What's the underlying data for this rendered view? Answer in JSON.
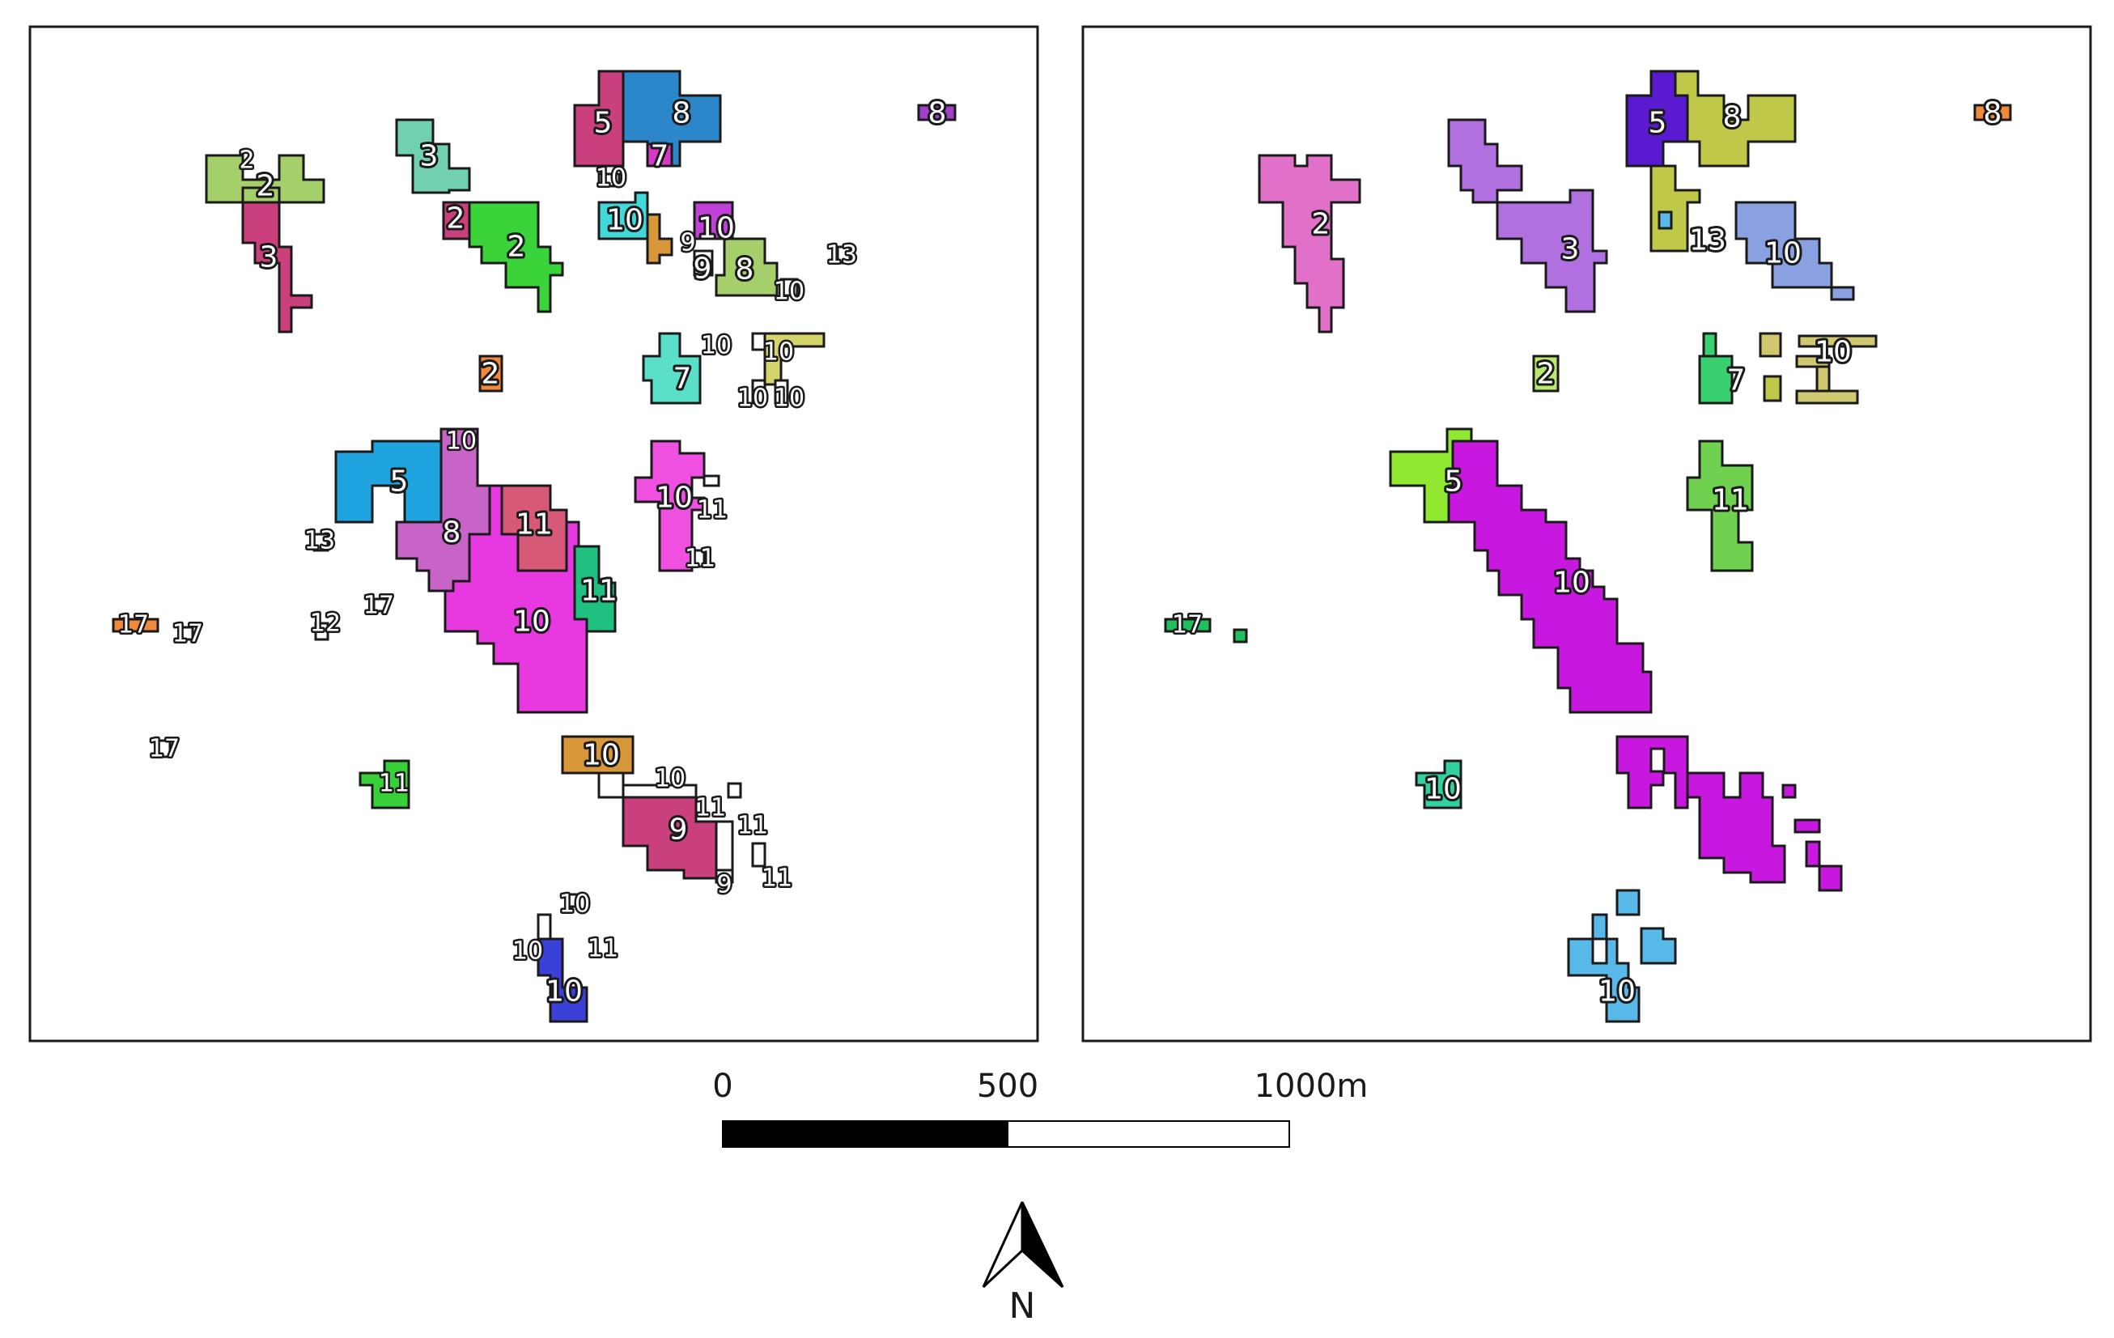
{
  "maps": [
    {
      "name": "left",
      "patches": [
        {
          "label": "5",
          "color": "#c9407c"
        },
        {
          "label": "8",
          "color": "#2b87c9"
        },
        {
          "label": "7",
          "color": "#d838c8"
        },
        {
          "label": "8",
          "color": "#a040c8"
        },
        {
          "label": "2",
          "color": "#a4cf6a"
        },
        {
          "label": "2",
          "color": "#a4cf6a"
        },
        {
          "label": "3",
          "color": "#c9407c"
        },
        {
          "label": "3",
          "color": "#70d0b0"
        },
        {
          "label": "2",
          "color": "#c9407c"
        },
        {
          "label": "2",
          "color": "#3ad43a"
        },
        {
          "label": "10",
          "color": "#ffffff"
        },
        {
          "label": "10",
          "color": "#40d8d8"
        },
        {
          "label": "9",
          "color": "#d8983a"
        },
        {
          "label": "10",
          "color": "#c040d8"
        },
        {
          "label": "9",
          "color": "#ffffff"
        },
        {
          "label": "8",
          "color": "#a4cf6a"
        },
        {
          "label": "13",
          "color": "#ffffff"
        },
        {
          "label": "10",
          "color": "#ffffff"
        },
        {
          "label": "10",
          "color": "#ffffff"
        },
        {
          "label": "10",
          "color": "#d4d46a"
        },
        {
          "label": "7",
          "color": "#5ae0c8"
        },
        {
          "label": "2",
          "color": "#f08a3a"
        },
        {
          "label": "10",
          "color": "#ffffff"
        },
        {
          "label": "10",
          "color": "#ffffff"
        },
        {
          "label": "10",
          "color": "#5ac820"
        },
        {
          "label": "5",
          "color": "#20a4e0"
        },
        {
          "label": "8",
          "color": "#c864c8"
        },
        {
          "label": "11",
          "color": "#d65a78"
        },
        {
          "label": "10",
          "color": "#e838e0"
        },
        {
          "label": "11",
          "color": "#20c080"
        },
        {
          "label": "10",
          "color": "#f050e0"
        },
        {
          "label": "11",
          "color": "#ffffff"
        },
        {
          "label": "11",
          "color": "#ffffff"
        },
        {
          "label": "13",
          "color": "#ffffff"
        },
        {
          "label": "17",
          "color": "#ffffff"
        },
        {
          "label": "12",
          "color": "#ffffff"
        },
        {
          "label": "17",
          "color": "#f08a3a"
        },
        {
          "label": "17",
          "color": "#ffffff"
        },
        {
          "label": "17",
          "color": "#ffffff"
        },
        {
          "label": "11",
          "color": "#38d038"
        },
        {
          "label": "10",
          "color": "#d8983a"
        },
        {
          "label": "10",
          "color": "#ffffff"
        },
        {
          "label": "11",
          "color": "#ffffff"
        },
        {
          "label": "9",
          "color": "#c9407c"
        },
        {
          "label": "11",
          "color": "#ffffff"
        },
        {
          "label": "9",
          "color": "#ffffff"
        },
        {
          "label": "11",
          "color": "#ffffff"
        },
        {
          "label": "10",
          "color": "#ffffff"
        },
        {
          "label": "10",
          "color": "#ffffff"
        },
        {
          "label": "11",
          "color": "#ffffff"
        },
        {
          "label": "10",
          "color": "#3a40d8"
        }
      ]
    },
    {
      "name": "right",
      "patches": [
        {
          "label": "5",
          "color": "#5a1ad0"
        },
        {
          "label": "8",
          "color": "#c0c84a"
        },
        {
          "label": "8",
          "color": "#f08a3a"
        },
        {
          "label": "2",
          "color": "#e070c8"
        },
        {
          "label": "3",
          "color": "#b070e0"
        },
        {
          "label": "13",
          "color": "#c0c84a"
        },
        {
          "label": "10",
          "color": "#8aa0e0"
        },
        {
          "label": "2",
          "color": "#b8e870"
        },
        {
          "label": "7",
          "color": "#38d070"
        },
        {
          "label": "10",
          "color": "#d0c870"
        },
        {
          "label": "5",
          "color": "#90e830"
        },
        {
          "label": "10",
          "color": "#c818e0"
        },
        {
          "label": "11",
          "color": "#70d050"
        },
        {
          "label": "17",
          "color": "#20c060"
        },
        {
          "label": "10",
          "color": "#30d0a0"
        },
        {
          "label": "10",
          "color": "#58b8e8"
        }
      ]
    }
  ],
  "scale_bar": {
    "labels": [
      "0",
      "500",
      "1000m"
    ]
  },
  "north_arrow": {
    "label": "N"
  }
}
